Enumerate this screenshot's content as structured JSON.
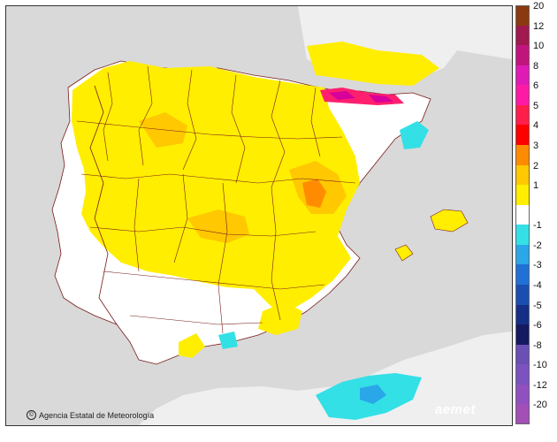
{
  "map": {
    "credit": "Agencia Estatal de Meteorología",
    "watermark": "aemet",
    "colors": {
      "sea": "#d9d9d9",
      "land_outside": "#efefef",
      "neutral": "#ffffff",
      "anomaly_1_2": "#ffee00",
      "anomaly_2_3": "#ffc800",
      "anomaly_3_4": "#ff8c00",
      "anomaly_5_6": "#ff1f6e",
      "anomaly_6_8": "#d6009a",
      "anomaly_neg_1": "#33e0e6",
      "anomaly_neg_2": "#2aa7e8",
      "border_lines": "#7a1a1a"
    }
  },
  "legend": {
    "items": [
      {
        "label": "20",
        "color": "#8b3a0f"
      },
      {
        "label": "12",
        "color": "#a0194f"
      },
      {
        "label": "10",
        "color": "#c0157d"
      },
      {
        "label": "8",
        "color": "#e01bb5"
      },
      {
        "label": "6",
        "color": "#ff1aa6"
      },
      {
        "label": "5",
        "color": "#ff1f4a"
      },
      {
        "label": "4",
        "color": "#ff0000"
      },
      {
        "label": "3",
        "color": "#ff8c00"
      },
      {
        "label": "2",
        "color": "#ffc800"
      },
      {
        "label": "1",
        "color": "#ffee00"
      },
      {
        "label": "",
        "color": "#ffffff"
      },
      {
        "label": "-1",
        "color": "#33e0e6"
      },
      {
        "label": "-2",
        "color": "#2aa7e8"
      },
      {
        "label": "-3",
        "color": "#2170d6"
      },
      {
        "label": "-4",
        "color": "#1a4fb0"
      },
      {
        "label": "-5",
        "color": "#152f86"
      },
      {
        "label": "-6",
        "color": "#141960"
      },
      {
        "label": "-8",
        "color": "#6a4fb5"
      },
      {
        "label": "-10",
        "color": "#7b52c0"
      },
      {
        "label": "-12",
        "color": "#9050c0"
      },
      {
        "label": "-20",
        "color": "#a24fb8"
      }
    ]
  }
}
